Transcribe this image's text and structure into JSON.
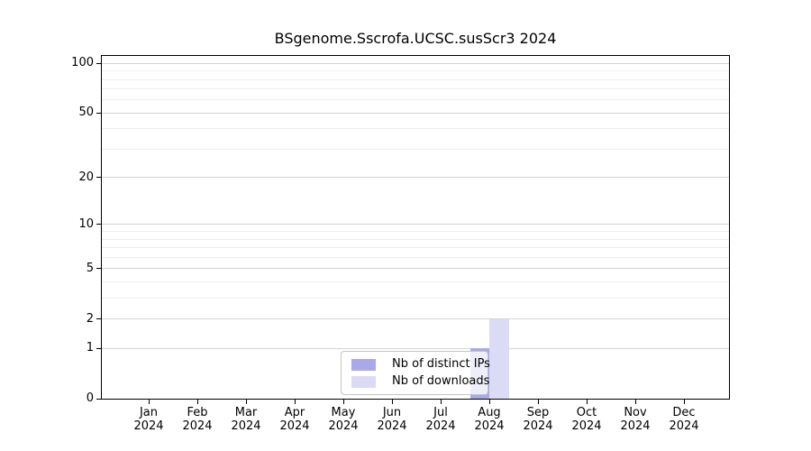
{
  "chart_data": {
    "type": "bar",
    "title": "BSgenome.Sscrofa.UCSC.susScr3 2024",
    "categories": [
      "Jan",
      "Feb",
      "Mar",
      "Apr",
      "May",
      "Jun",
      "Jul",
      "Aug",
      "Sep",
      "Oct",
      "Nov",
      "Dec"
    ],
    "year": "2024",
    "series": [
      {
        "name": "Nb of distinct IPs",
        "color": "#a8a8ea",
        "values": [
          0,
          0,
          0,
          0,
          0,
          0,
          0,
          1,
          0,
          0,
          0,
          0
        ]
      },
      {
        "name": "Nb of downloads",
        "color": "#dbdbf6",
        "values": [
          0,
          0,
          0,
          0,
          0,
          0,
          0,
          2,
          0,
          0,
          0,
          0
        ]
      }
    ],
    "yscale": "log1p",
    "ylim": [
      0,
      111
    ],
    "yticks_major": [
      0,
      1,
      2,
      5,
      10,
      20,
      50,
      100
    ],
    "yticks_minor": [
      3,
      4,
      6,
      7,
      8,
      9,
      30,
      40,
      60,
      70,
      80,
      90
    ],
    "grid": "horizontal",
    "legend_position": "bottom-center",
    "colors": {
      "grid_major": "#d4d4d4",
      "grid_minor": "#efefef",
      "axis": "#000000",
      "background": "#ffffff"
    }
  }
}
